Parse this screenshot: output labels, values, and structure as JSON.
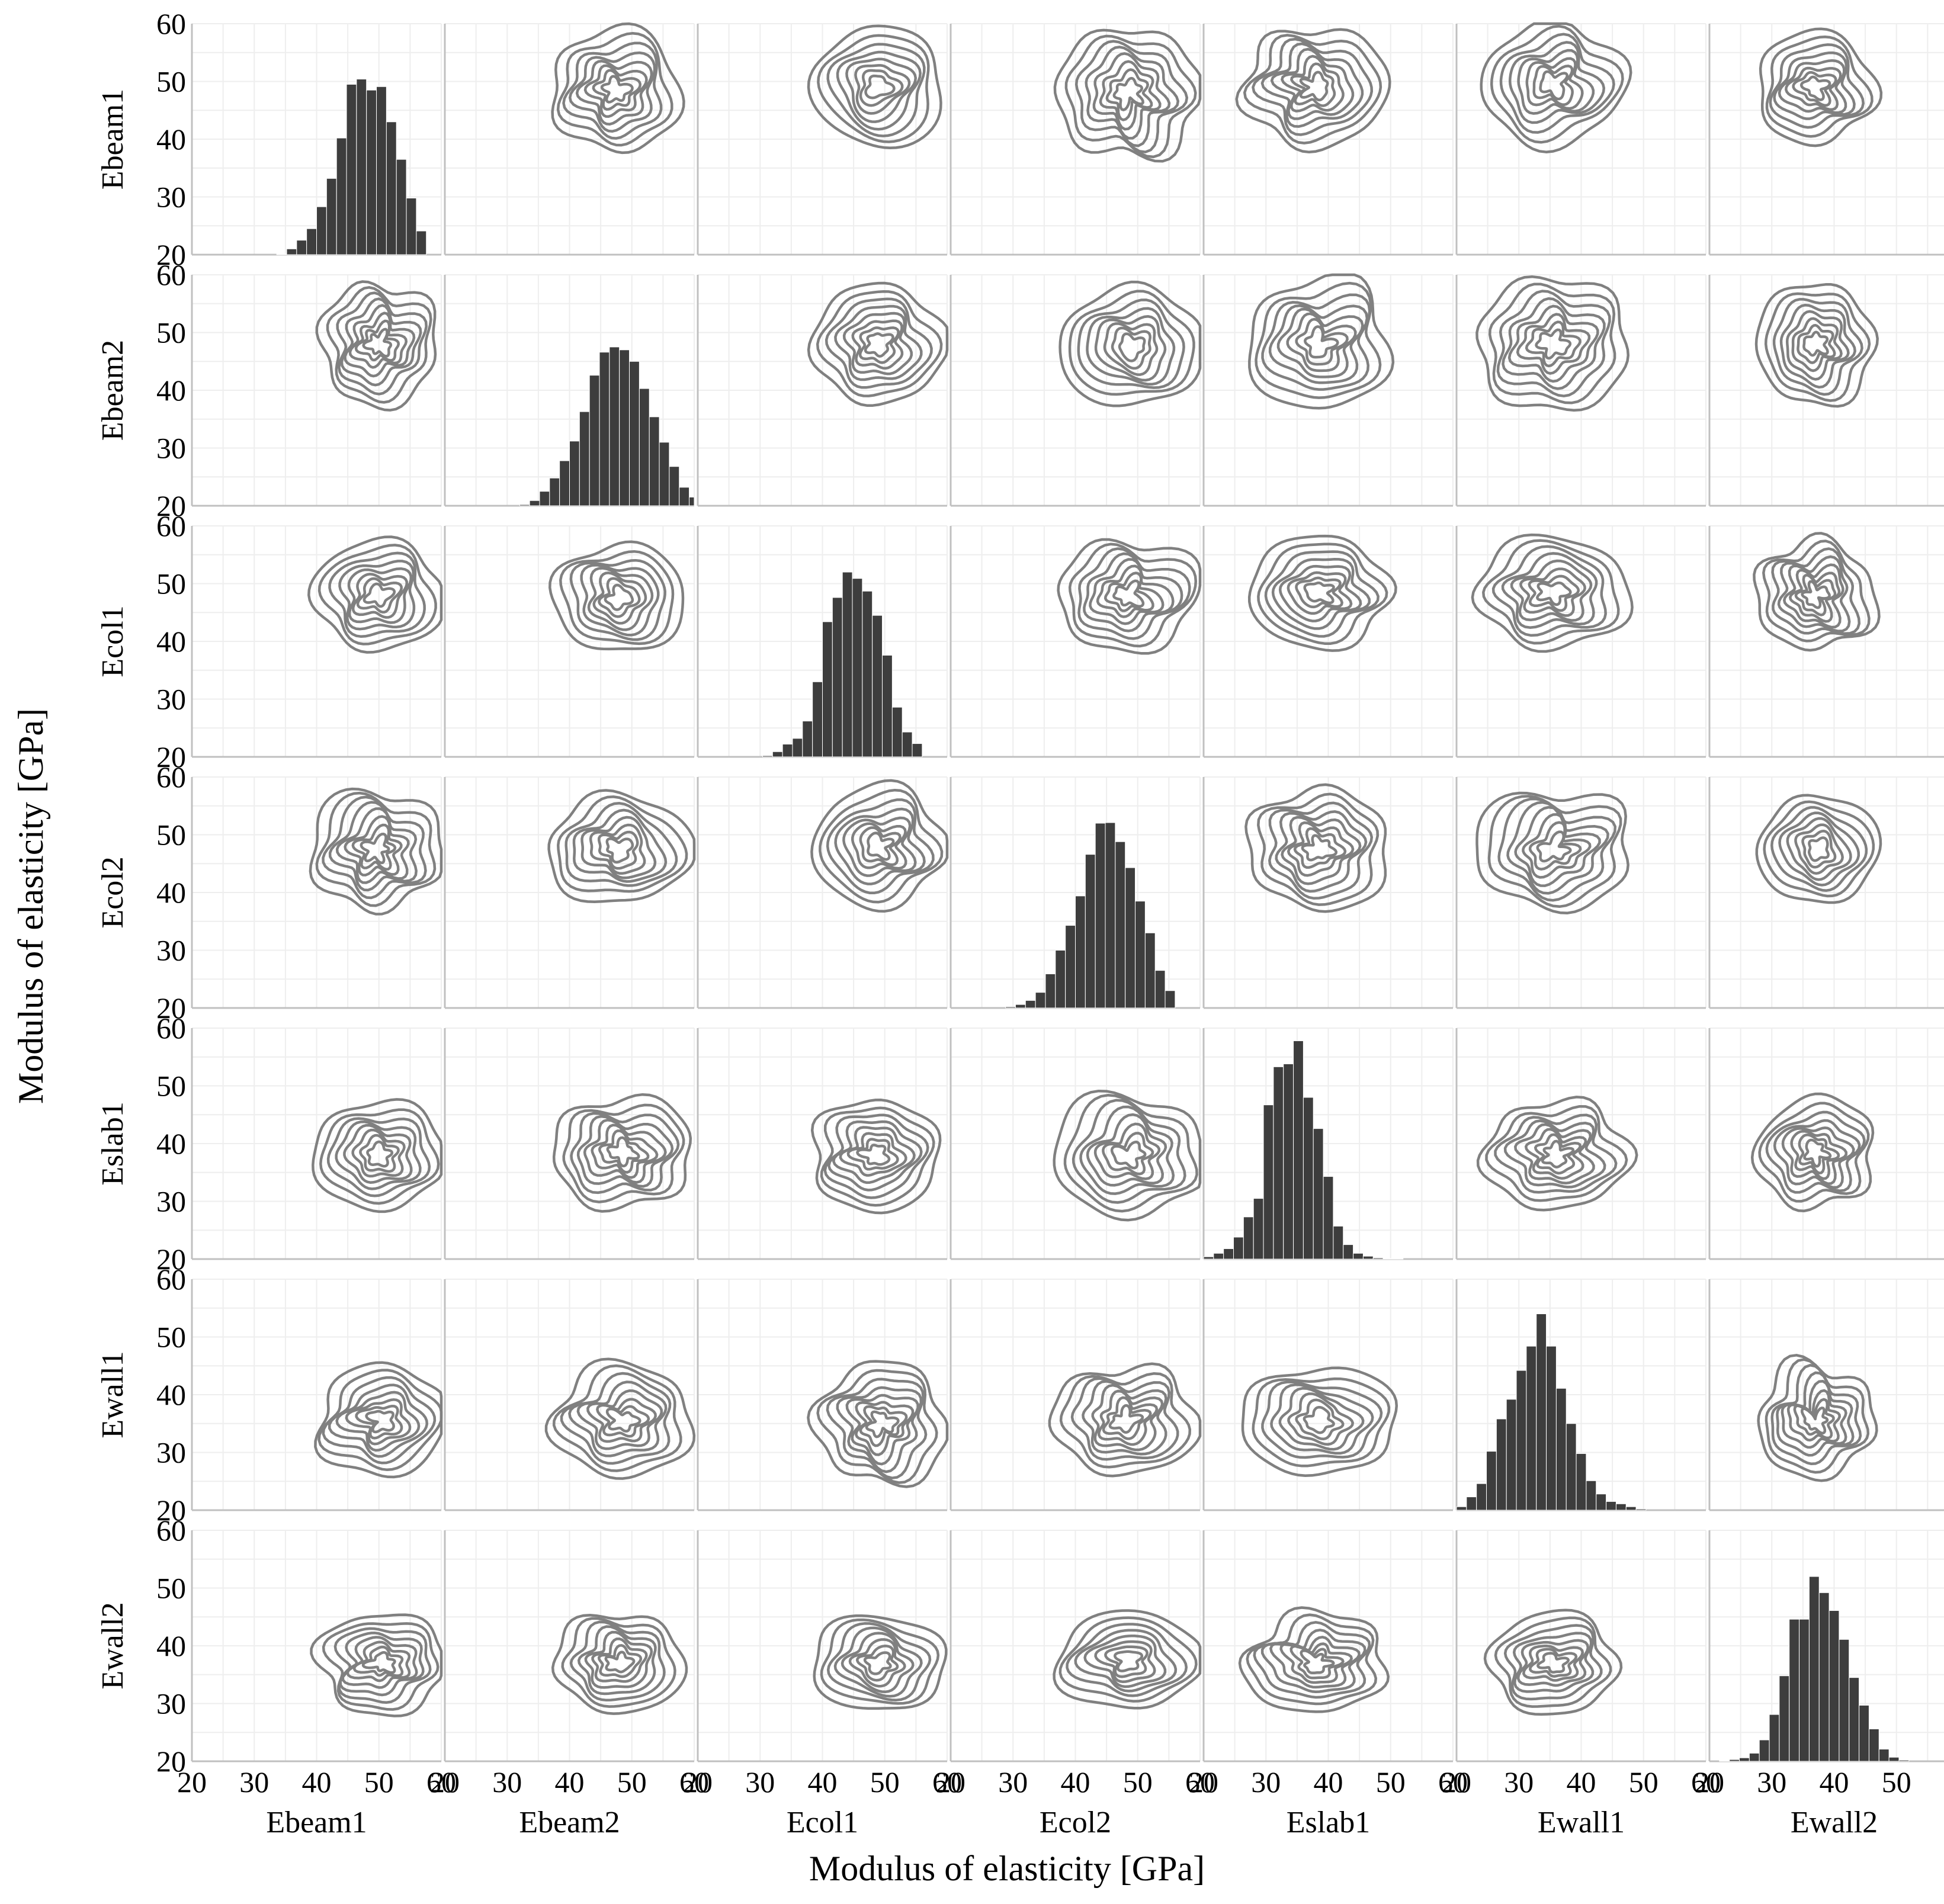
{
  "chart_data": {
    "type": "pairplot",
    "variables": [
      "Ebeam1",
      "Ebeam2",
      "Ecol1",
      "Ecol2",
      "Eslab1",
      "Ewall1",
      "Ewall2"
    ],
    "xlabel": "Modulus of elasticity [GPa]",
    "ylabel": "Modulus of elasticity [GPa]",
    "xlim": [
      20,
      60
    ],
    "ylim": [
      20,
      60
    ],
    "xticks": [
      "20",
      "30",
      "40",
      "50",
      "60"
    ],
    "yticks": [
      "20",
      "30",
      "40",
      "50",
      "60"
    ],
    "grid": true,
    "colors": {
      "bars": "#3d3d3d",
      "contours": "#808080",
      "grid": "#eeeeee",
      "axes": "#c0c0c0"
    },
    "diagonal": {
      "type": "histogram",
      "bin_width": 1.6,
      "series": [
        {
          "variable": "Ebeam1",
          "bin_start": 33.6,
          "values": [
            20.1,
            21.0,
            22.5,
            24.5,
            28.3,
            33.2,
            40.2,
            49.5,
            50.4,
            48.5,
            49.1,
            43.0,
            36.5,
            29.8,
            24.1
          ]
        },
        {
          "variable": "Ebeam2",
          "bin_start": 32.0,
          "values": [
            20.2,
            20.9,
            22.5,
            24.8,
            27.8,
            31.2,
            36.3,
            42.6,
            46.6,
            47.5,
            47.0,
            45.0,
            40.3,
            35.4,
            31.0,
            26.8,
            23.2,
            21.5
          ]
        },
        {
          "variable": "Ecol1",
          "bin_start": 30.4,
          "values": [
            20.2,
            20.9,
            22.2,
            23.2,
            26.2,
            33.0,
            43.4,
            47.6,
            52.0,
            50.9,
            48.7,
            44.5,
            37.6,
            28.6,
            24.3,
            22.3
          ]
        },
        {
          "variable": "Ecol2",
          "bin_start": 28.8,
          "values": [
            20.2,
            20.6,
            21.3,
            22.7,
            25.9,
            30.0,
            34.3,
            39.4,
            46.6,
            52.0,
            52.1,
            48.8,
            44.3,
            38.5,
            33.0,
            26.5,
            23.0
          ]
        },
        {
          "variable": "Eslab1",
          "bin_start": 20.0,
          "values": [
            20.4,
            21.0,
            21.8,
            23.8,
            27.3,
            30.5,
            46.7,
            53.3,
            53.8,
            57.8,
            48.0,
            42.6,
            34.3,
            25.7,
            22.5,
            21.0,
            20.5,
            20.2,
            20.1,
            20.1
          ]
        },
        {
          "variable": "Ewall1",
          "bin_start": 20.0,
          "values": [
            20.6,
            22.3,
            24.6,
            30.2,
            35.8,
            39.2,
            44.2,
            48.4,
            54.0,
            48.4,
            41.1,
            35.0,
            29.8,
            25.1,
            22.8,
            21.5,
            21.1,
            20.6,
            20.2
          ]
        },
        {
          "variable": "Ewall2",
          "bin_start": 21.6,
          "values": [
            20.1,
            20.3,
            20.6,
            21.4,
            23.7,
            28.1,
            34.8,
            44.6,
            44.6,
            52.0,
            49.2,
            46.1,
            41.1,
            34.5,
            29.7,
            25.6,
            22.1,
            20.7,
            20.2
          ]
        }
      ]
    },
    "off_diagonal": {
      "type": "kde-contour",
      "note": "centers and spreads of the bivariate density contours, in data units",
      "cells": [
        {
          "row": "Ebeam1",
          "col": "Ebeam2",
          "cx": 47.5,
          "cy": 48.5,
          "sx": 5.5,
          "sy": 5.5
        },
        {
          "row": "Ebeam1",
          "col": "Ecol1",
          "cx": 49.0,
          "cy": 49.0,
          "sx": 5.5,
          "sy": 5.5
        },
        {
          "row": "Ebeam1",
          "col": "Ecol2",
          "cx": 48.5,
          "cy": 48.0,
          "sx": 6.0,
          "sy": 6.0
        },
        {
          "row": "Ebeam1",
          "col": "Eslab1",
          "cx": 38.0,
          "cy": 49.0,
          "sx": 6.0,
          "sy": 5.5
        },
        {
          "row": "Ebeam1",
          "col": "Ewall1",
          "cx": 35.5,
          "cy": 49.5,
          "sx": 6.0,
          "sy": 5.5
        },
        {
          "row": "Ebeam1",
          "col": "Ewall2",
          "cx": 37.0,
          "cy": 49.0,
          "sx": 5.0,
          "sy": 5.0
        },
        {
          "row": "Ebeam2",
          "col": "Ebeam1",
          "cx": 50.0,
          "cy": 48.0,
          "sx": 5.0,
          "sy": 5.5
        },
        {
          "row": "Ebeam2",
          "col": "Ecol1",
          "cx": 49.0,
          "cy": 48.0,
          "sx": 5.5,
          "sy": 5.5
        },
        {
          "row": "Ebeam2",
          "col": "Ecol2",
          "cx": 49.0,
          "cy": 47.5,
          "sx": 6.0,
          "sy": 5.5
        },
        {
          "row": "Ebeam2",
          "col": "Eslab1",
          "cx": 38.5,
          "cy": 48.0,
          "sx": 6.0,
          "sy": 6.0
        },
        {
          "row": "Ebeam2",
          "col": "Ewall1",
          "cx": 35.5,
          "cy": 48.0,
          "sx": 6.5,
          "sy": 6.0
        },
        {
          "row": "Ebeam2",
          "col": "Ewall2",
          "cx": 37.0,
          "cy": 48.0,
          "sx": 5.0,
          "sy": 5.5
        },
        {
          "row": "Ecol1",
          "col": "Ebeam1",
          "cx": 50.0,
          "cy": 48.0,
          "sx": 5.5,
          "sy": 5.0
        },
        {
          "row": "Ecol1",
          "col": "Ebeam2",
          "cx": 48.0,
          "cy": 47.5,
          "sx": 5.5,
          "sy": 5.0
        },
        {
          "row": "Ecol1",
          "col": "Ecol2",
          "cx": 48.5,
          "cy": 48.0,
          "sx": 6.0,
          "sy": 5.0
        },
        {
          "row": "Ecol1",
          "col": "Eslab1",
          "cx": 38.5,
          "cy": 48.5,
          "sx": 6.0,
          "sy": 5.0
        },
        {
          "row": "Ecol1",
          "col": "Ewall1",
          "cx": 35.5,
          "cy": 48.5,
          "sx": 6.5,
          "sy": 5.0
        },
        {
          "row": "Ecol1",
          "col": "Ewall2",
          "cx": 37.0,
          "cy": 48.0,
          "sx": 5.0,
          "sy": 5.0
        },
        {
          "row": "Ecol2",
          "col": "Ebeam1",
          "cx": 49.5,
          "cy": 47.5,
          "sx": 5.5,
          "sy": 5.5
        },
        {
          "row": "Ecol2",
          "col": "Ebeam2",
          "cx": 48.0,
          "cy": 47.5,
          "sx": 6.0,
          "sy": 5.0
        },
        {
          "row": "Ecol2",
          "col": "Ecol1",
          "cx": 49.0,
          "cy": 48.0,
          "sx": 5.5,
          "sy": 5.5
        },
        {
          "row": "Ecol2",
          "col": "Eslab1",
          "cx": 38.5,
          "cy": 47.5,
          "sx": 6.0,
          "sy": 5.5
        },
        {
          "row": "Ecol2",
          "col": "Ewall1",
          "cx": 35.5,
          "cy": 47.5,
          "sx": 6.5,
          "sy": 5.5
        },
        {
          "row": "Ecol2",
          "col": "Ewall2",
          "cx": 37.5,
          "cy": 47.5,
          "sx": 5.0,
          "sy": 5.0
        },
        {
          "row": "Eslab1",
          "col": "Ebeam1",
          "cx": 50.0,
          "cy": 38.0,
          "sx": 5.5,
          "sy": 5.0
        },
        {
          "row": "Eslab1",
          "col": "Ebeam2",
          "cx": 48.5,
          "cy": 38.5,
          "sx": 6.0,
          "sy": 5.0
        },
        {
          "row": "Eslab1",
          "col": "Ecol1",
          "cx": 48.5,
          "cy": 38.0,
          "sx": 5.5,
          "sy": 5.0
        },
        {
          "row": "Eslab1",
          "col": "Ecol2",
          "cx": 48.5,
          "cy": 38.0,
          "sx": 6.5,
          "sy": 5.5
        },
        {
          "row": "Eslab1",
          "col": "Ewall1",
          "cx": 36.0,
          "cy": 38.0,
          "sx": 6.0,
          "sy": 5.0
        },
        {
          "row": "Eslab1",
          "col": "Ewall2",
          "cx": 37.0,
          "cy": 38.5,
          "sx": 5.0,
          "sy": 5.0
        },
        {
          "row": "Ewall1",
          "col": "Ebeam1",
          "cx": 50.5,
          "cy": 35.5,
          "sx": 5.5,
          "sy": 5.0
        },
        {
          "row": "Ewall1",
          "col": "Ebeam2",
          "cx": 48.5,
          "cy": 35.5,
          "sx": 6.0,
          "sy": 5.0
        },
        {
          "row": "Ewall1",
          "col": "Ecol1",
          "cx": 49.5,
          "cy": 35.0,
          "sx": 5.5,
          "sy": 5.5
        },
        {
          "row": "Ewall1",
          "col": "Ecol2",
          "cx": 48.0,
          "cy": 35.5,
          "sx": 6.0,
          "sy": 5.0
        },
        {
          "row": "Ewall1",
          "col": "Eslab1",
          "cx": 38.5,
          "cy": 35.5,
          "sx": 6.5,
          "sy": 5.0
        },
        {
          "row": "Ewall1",
          "col": "Ewall2",
          "cx": 37.0,
          "cy": 35.5,
          "sx": 5.0,
          "sy": 5.0
        },
        {
          "row": "Ewall2",
          "col": "Ebeam1",
          "cx": 50.5,
          "cy": 37.0,
          "sx": 5.5,
          "sy": 4.5
        },
        {
          "row": "Ewall2",
          "col": "Ebeam2",
          "cx": 48.0,
          "cy": 37.0,
          "sx": 5.5,
          "sy": 4.5
        },
        {
          "row": "Ewall2",
          "col": "Ecol1",
          "cx": 49.0,
          "cy": 37.0,
          "sx": 5.5,
          "sy": 4.5
        },
        {
          "row": "Ewall2",
          "col": "Ecol2",
          "cx": 48.5,
          "cy": 37.5,
          "sx": 6.0,
          "sy": 4.5
        },
        {
          "row": "Ewall2",
          "col": "Eslab1",
          "cx": 38.0,
          "cy": 37.0,
          "sx": 6.0,
          "sy": 4.5
        },
        {
          "row": "Ewall2",
          "col": "Ewall1",
          "cx": 35.5,
          "cy": 37.0,
          "sx": 5.5,
          "sy": 4.5
        }
      ]
    }
  }
}
